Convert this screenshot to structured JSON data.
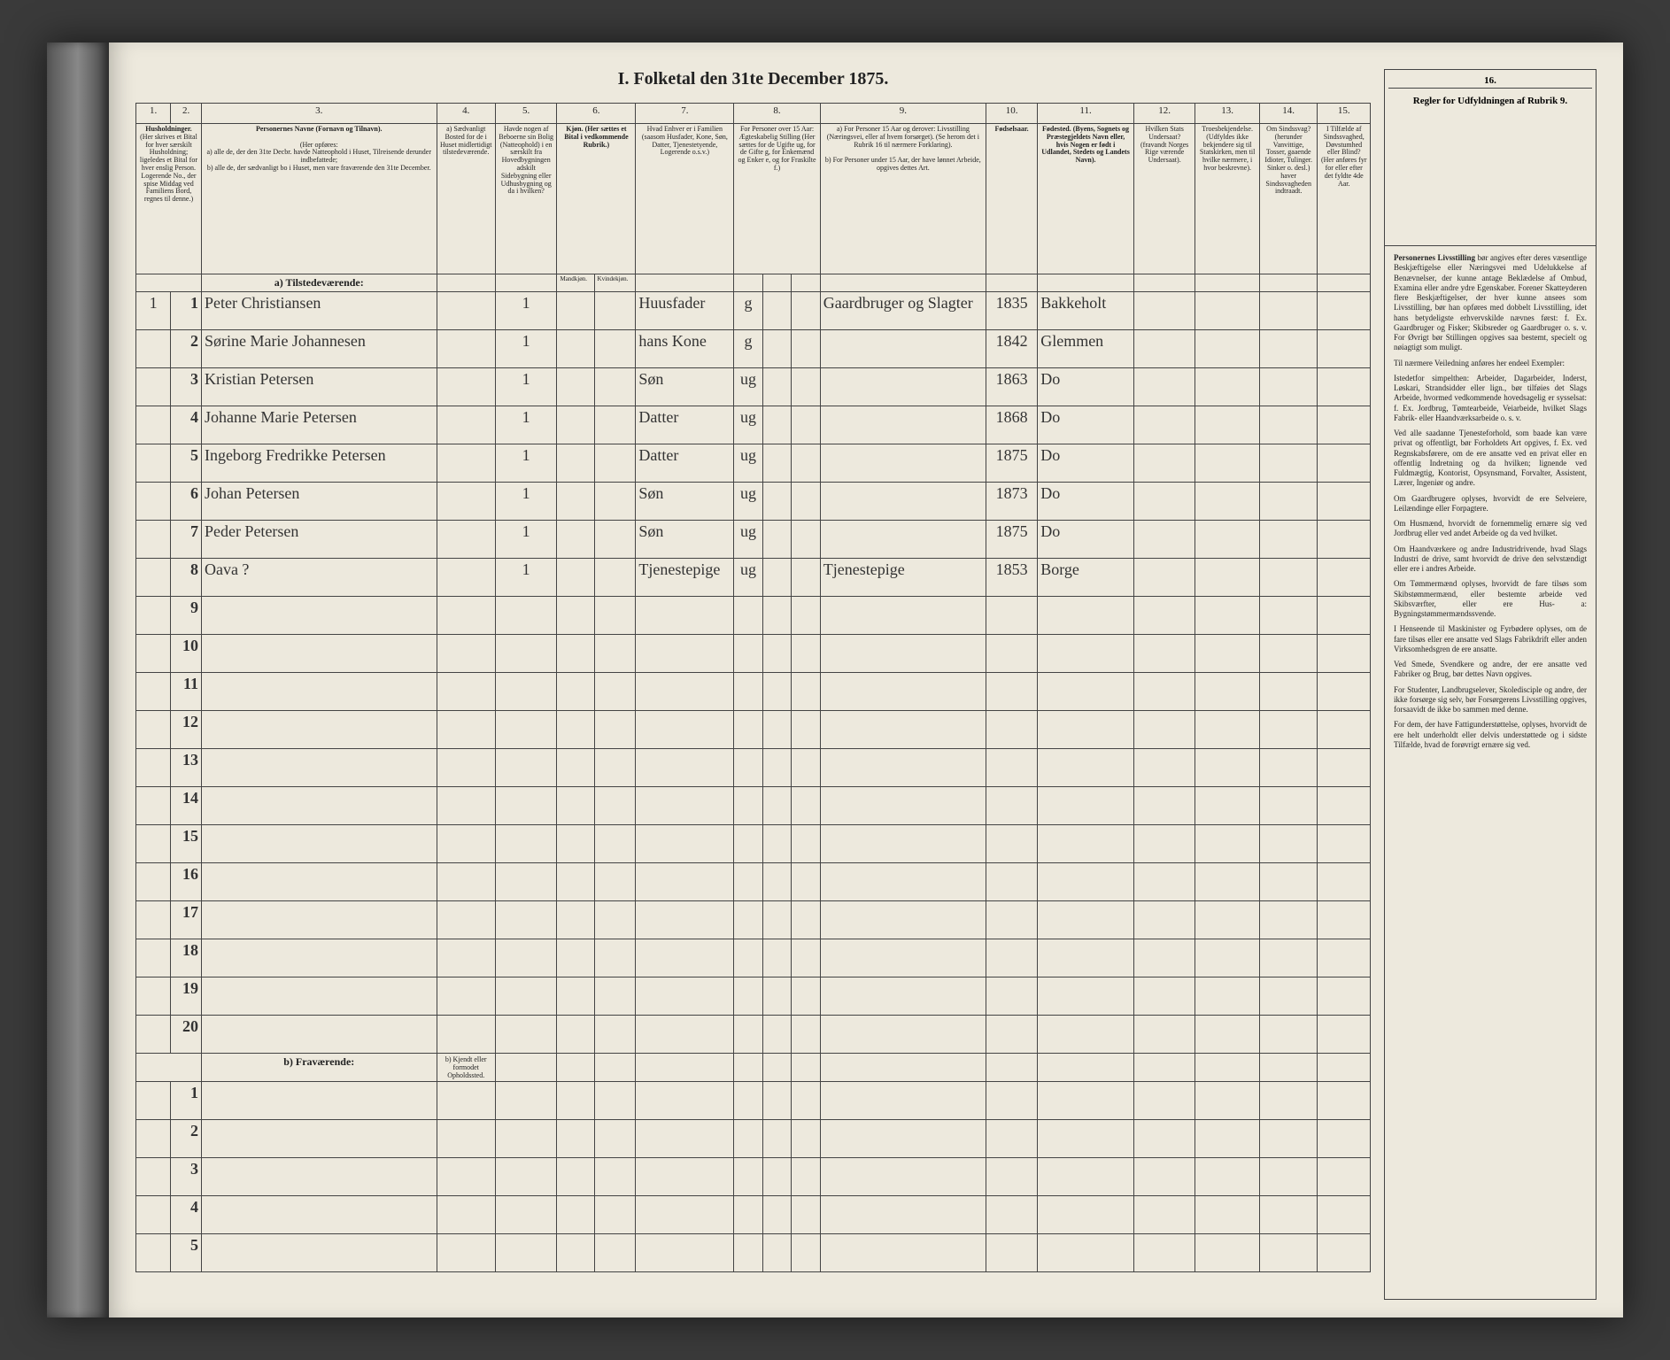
{
  "title": "I. Folketal den 31te December 1875.",
  "columns": {
    "1": "1.",
    "2": "2.",
    "3": "3.",
    "4": "4.",
    "5": "5.",
    "6": "6.",
    "7": "7.",
    "8": "8.",
    "9": "9.",
    "10": "10.",
    "11": "11.",
    "12": "12.",
    "13": "13.",
    "14": "14.",
    "15": "15.",
    "16": "16."
  },
  "headers": {
    "h1": "Husholdninger.",
    "h1sub": "(Her skrives et Bital for hver særskilt Husholdning; ligeledes et Bital for hver enslig Person. Logerende No., der spise Middag ved Familiens Bord, regnes til denne.)",
    "h3": "Personernes Navne (Fornavn og Tilnavn).",
    "h3a": "(Her opføres:",
    "h3b": "a) alle de, der den 31te Decbr. havde Natteophold i Huset, Tilreisende derunder indbefattede;",
    "h3c": "b) alle de, der sædvanligt bo i Huset, men vare fraværende den 31te December.",
    "h4": "a) Sædvanligt Bosted for de i Huset midlertidigt tilstedeværende.",
    "h5": "Havde nogen af Beboerne sin Bolig (Natteophold) i en særskilt fra Hovedbygningen adskilt Sidebygning eller Udhusbygning og da i hvilken?",
    "h6": "Kjøn. (Her sættes et Bital i vedkommende Rubrik.)",
    "h6a": "Mandkjøn.",
    "h6b": "Kvindekjøn.",
    "h7": "Hvad Enhver er i Familien (saasom Husfader, Kone, Søn, Datter, Tjenestetyende, Logerende o.s.v.)",
    "h8": "For Personer over 15 Aar: Ægteskabelig Stilling (Her sættes for de Ugifte ug, for de Gifte g, for Enkemænd og Enker e, og for Fraskilte f.)",
    "h9": "a) For Personer 15 Aar og derover: Livsstilling (Næringsvei, eller af hvem forsørget). (Se herom det i Rubrik 16 til nærmere Forklaring).",
    "h9b": "b) For Personer under 15 Aar, der have lønnet Arbeide, opgives dettes Art.",
    "h10": "Fødselsaar.",
    "h11": "Fødested. (Byens, Sognets og Præstegjeldets Navn eller, hvis Nogen er født i Udlandet, Stedets og Landets Navn).",
    "h12": "Hvilken Stats Undersaat? (fravandt Norges Rige værende Undersaat).",
    "h13": "Troesbekjendelse. (Udfyldes ikke bekjendere sig til Statskirken, men til hvilke nærmere, i hvor beskrevne).",
    "h14": "Om Sindssvag? (herunder Vanvittige, Tosser, gaaende Idioter, Tulinger. Sinker o. desl.) haver Sindssvagheden indtraadt.",
    "h15": "I Tilfælde af Sindssvaghed, Døvstumhed eller Blind? (Her anføres fyr for eller efter det fyldte 4de Aar.",
    "h16": "Regler for Udfyldningen af Rubrik 9."
  },
  "sections": {
    "present": "a) Tilstedeværende:",
    "absent": "b) Fraværende:",
    "absent_col4": "b) Kjendt eller formodet Opholdssted."
  },
  "rows": [
    {
      "n": "1",
      "hh": "1",
      "name": "Peter Christiansen",
      "c5": "1",
      "fam": "Huusfader",
      "stat": "g",
      "occ": "Gaardbruger og Slagter",
      "year": "1835",
      "place": "Bakkeholt"
    },
    {
      "n": "2",
      "hh": "",
      "name": "Sørine Marie Johannesen",
      "c5": "1",
      "fam": "hans Kone",
      "stat": "g",
      "occ": "",
      "year": "1842",
      "place": "Glemmen"
    },
    {
      "n": "3",
      "hh": "",
      "name": "Kristian Petersen",
      "c5": "1",
      "fam": "Søn",
      "stat": "ug",
      "occ": "",
      "year": "1863",
      "place": "Do"
    },
    {
      "n": "4",
      "hh": "",
      "name": "Johanne Marie Petersen",
      "c5": "1",
      "fam": "Datter",
      "stat": "ug",
      "occ": "",
      "year": "1868",
      "place": "Do"
    },
    {
      "n": "5",
      "hh": "",
      "name": "Ingeborg Fredrikke Petersen",
      "c5": "1",
      "fam": "Datter",
      "stat": "ug",
      "occ": "",
      "year": "1875",
      "place": "Do"
    },
    {
      "n": "6",
      "hh": "",
      "name": "Johan Petersen",
      "c5": "1",
      "fam": "Søn",
      "stat": "ug",
      "occ": "",
      "year": "1873",
      "place": "Do"
    },
    {
      "n": "7",
      "hh": "",
      "name": "Peder Petersen",
      "c5": "1",
      "fam": "Søn",
      "stat": "ug",
      "occ": "",
      "year": "1875",
      "place": "Do"
    },
    {
      "n": "8",
      "hh": "",
      "name": "Oava  ?",
      "c5": "1",
      "fam": "Tjenestepige",
      "stat": "ug",
      "occ": "Tjenestepige",
      "year": "1853",
      "place": "Borge"
    }
  ],
  "empty_rows": [
    "9",
    "10",
    "11",
    "12",
    "13",
    "14",
    "15",
    "16",
    "17",
    "18",
    "19",
    "20"
  ],
  "absent_rows": [
    "1",
    "2",
    "3",
    "4",
    "5"
  ],
  "rules": [
    "Personernes Livsstilling bør angives efter deres væsentlige Beskjæftigelse eller Næringsvei med Udelukkelse af Benævnelser, der kunne antage Beklædelse af Ombud, Examina eller andre ydre Egenskaber. Forener Skatteyderen flere Beskjæftigelser, der hver kunne ansees som Livsstilling, bør han opføres med dobbelt Livsstilling, idet hans betydeligste erhvervskilde nævnes først: f. Ex. Gaardbruger og Fisker; Skibsreder og Gaardbruger o. s. v. For Øvrigt bør Stillingen opgives saa bestemt, specielt og nøiagtigt som muligt.",
    "Til nærmere Veiledning anføres her endeel Exempler:",
    "Istedetfor simpelthen: Arbeider, Dagarbeider, Inderst, Løskari, Strandsidder eller lign., bør tilføies det Slags Arbeide, hvormed vedkommende hovedsagelig er sysselsat: f. Ex. Jordbrug, Tømtearbeide, Veiarbeide, hvilket Slags Fabrik- eller Haandværksarbeide o. s. v.",
    "Ved alle saadanne Tjenesteforhold, som baade kan være privat og offentligt, bør Forholdets Art opgives, f. Ex. ved Regnskabsførere, om de ere ansatte ved en privat eller en offentlig Indretning og da hvilken; lignende ved Fuldmægtig, Kontorist, Opsynsmand, Forvalter, Assistent, Lærer, Ingeniør og andre.",
    "Om Gaardbrugere oplyses, hvorvidt de ere Selveiere, Leilændinge eller Forpagtere.",
    "Om Husmænd, hvorvidt de fornemmelig ernære sig ved Jordbrug eller ved andet Arbeide og da ved hvilket.",
    "Om Haandværkere og andre Industridrivende, hvad Slags Industri de drive, samt hvorvidt de drive den selvstændigt eller ere i andres Arbeide.",
    "Om Tømmermænd oplyses, hvorvidt de fare tilsøs som Skibstømmermænd, eller bestemte arbeide ved Skibsværfter, eller ere Hus- a: Bygningstømmermændssvende.",
    "I Henseende til Maskinister og Fyrbødere oplyses, om de fare tilsøs eller ere ansatte ved Slags Fabrikdrift eller anden Virksomhedsgren de ere ansatte.",
    "Ved Smede, Svendkere og andre, der ere ansatte ved Fabriker og Brug, bør dettes Navn opgives.",
    "For Studenter, Landbrugselever, Skoledisciple og andre, der ikke forsørge sig selv, bør Forsørgerens Livsstilling opgives, forsaavidt de ikke bo sammen med denne.",
    "For dem, der have Fattigunderstøttelse, oplyses, hvorvidt de ere helt underholdt eller delvis understøttede og i sidste Tilfælde, hvad de forøvrigt ernære sig ved."
  ]
}
